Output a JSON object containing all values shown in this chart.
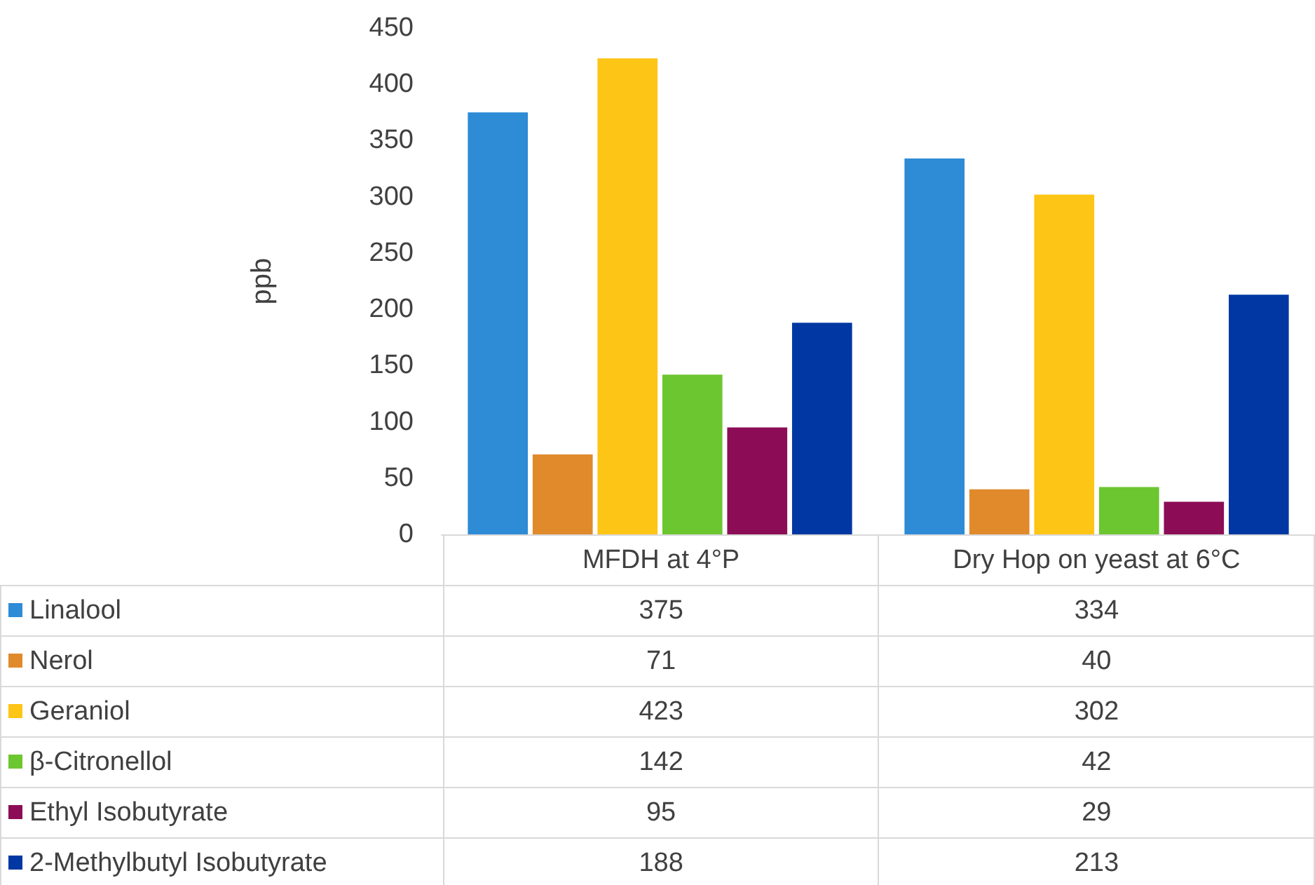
{
  "chart_data": {
    "type": "bar",
    "ylabel": "ppb",
    "categories": [
      "MFDH at 4°P",
      "Dry Hop on yeast at 6°C"
    ],
    "series": [
      {
        "name": "Linalool",
        "color": "#2e8bd6",
        "values": [
          375,
          334
        ]
      },
      {
        "name": "Nerol",
        "color": "#e08a2c",
        "values": [
          71,
          40
        ]
      },
      {
        "name": "Geraniol",
        "color": "#fdc515",
        "values": [
          423,
          302
        ]
      },
      {
        "name": "β-Citronellol",
        "color": "#6cc630",
        "values": [
          142,
          42
        ]
      },
      {
        "name": "Ethyl Isobutyrate",
        "color": "#8c0d56",
        "values": [
          95,
          29
        ]
      },
      {
        "name": "2-Methylbutyl Isobutyrate",
        "color": "#0037a3",
        "values": [
          188,
          213
        ]
      }
    ],
    "ylim": [
      0,
      450
    ],
    "yticks": [
      0,
      50,
      100,
      150,
      200,
      250,
      300,
      350,
      400,
      450
    ],
    "grid": false,
    "legend": "bottom",
    "data_labels": true
  }
}
